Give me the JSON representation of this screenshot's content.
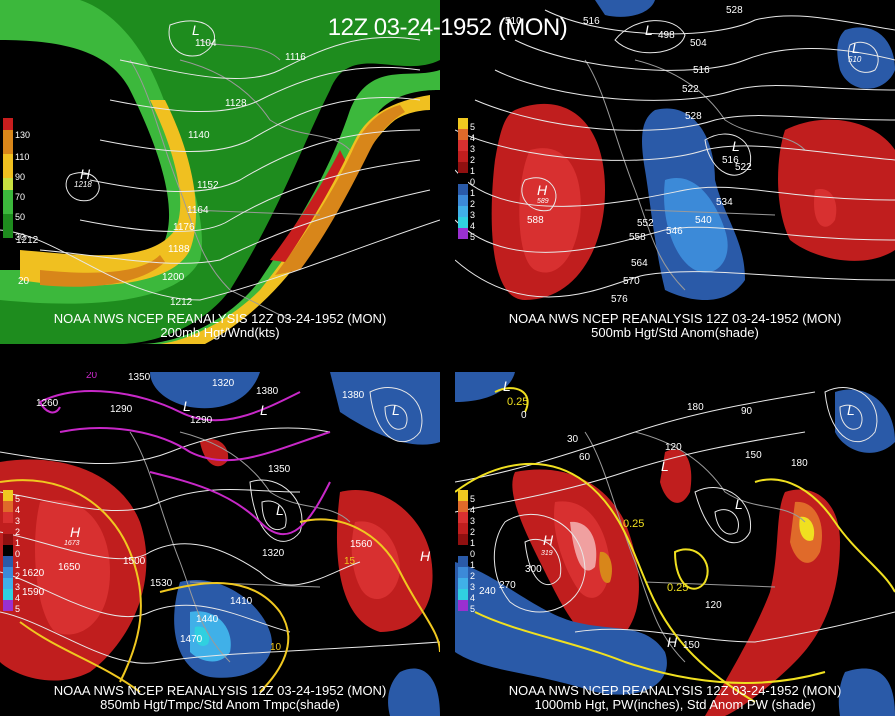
{
  "title": "12Z 03-24-1952 (MON)",
  "panels": [
    {
      "caption_line1": "NOAA NWS NCEP REANALYSIS 12Z 03-24-1952 (MON)",
      "caption_line2": "200mb Hgt/Wnd(kts)",
      "legend": [
        {
          "label": "130",
          "color": "#c81e1e"
        },
        {
          "label": "110",
          "color": "#d8861a"
        },
        {
          "label": "90",
          "color": "#f0c020"
        },
        {
          "label": "70",
          "color": "#c8e040"
        },
        {
          "label": "50",
          "color": "#3cb83c"
        },
        {
          "label": "30",
          "color": "#1e8c1e"
        }
      ],
      "contour_labels": [
        "1104",
        "1116",
        "1128",
        "1140",
        "1152",
        "1164",
        "1176",
        "1188",
        "1200",
        "1212",
        "1212",
        "1218",
        "20"
      ],
      "centers": [
        "H",
        "L"
      ]
    },
    {
      "caption_line1": "NOAA NWS NCEP REANALYSIS 12Z 03-24-1952 (MON)",
      "caption_line2": "500mb Hgt/Std Anom(shade)",
      "legend": [
        {
          "label": "5",
          "color": "#f0c820"
        },
        {
          "label": "4",
          "color": "#e06a2a"
        },
        {
          "label": "3",
          "color": "#d83030"
        },
        {
          "label": "2",
          "color": "#c01e1e"
        },
        {
          "label": "1",
          "color": "#901010"
        },
        {
          "label": "0",
          "color": "#000000"
        },
        {
          "label": "1",
          "color": "#2a5aa8"
        },
        {
          "label": "2",
          "color": "#3c8ad8"
        },
        {
          "label": "3",
          "color": "#40b0e8"
        },
        {
          "label": "4",
          "color": "#30d0e0"
        },
        {
          "label": "5",
          "color": "#9a30d0"
        }
      ],
      "contour_labels": [
        "498",
        "504",
        "510",
        "516",
        "516",
        "522",
        "528",
        "528",
        "534",
        "540",
        "546",
        "552",
        "558",
        "564",
        "570",
        "576",
        "588",
        "589",
        "510",
        "516",
        "522"
      ],
      "centers": [
        "H",
        "L",
        "L",
        "L"
      ]
    },
    {
      "caption_line1": "NOAA NWS NCEP REANALYSIS 12Z 03-24-1952 (MON)",
      "caption_line2": "850mb Hgt/Tmpc/Std Anom Tmpc(shade)",
      "legend": [
        {
          "label": "5",
          "color": "#f0c820"
        },
        {
          "label": "4",
          "color": "#e06a2a"
        },
        {
          "label": "3",
          "color": "#d83030"
        },
        {
          "label": "2",
          "color": "#c01e1e"
        },
        {
          "label": "1",
          "color": "#901010"
        },
        {
          "label": "0",
          "color": "#000000"
        },
        {
          "label": "1",
          "color": "#2a5aa8"
        },
        {
          "label": "2",
          "color": "#3c8ad8"
        },
        {
          "label": "3",
          "color": "#40b0e8"
        },
        {
          "label": "4",
          "color": "#30d0e0"
        },
        {
          "label": "5",
          "color": "#9a30d0"
        }
      ],
      "contour_labels": [
        "1260",
        "1290",
        "1320",
        "1350",
        "1380",
        "1410",
        "1440",
        "1470",
        "1500",
        "1530",
        "1560",
        "1590",
        "1620",
        "1650",
        "1673",
        "1290",
        "1320",
        "1350",
        "1380",
        "20",
        "10",
        "15"
      ],
      "centers": [
        "H",
        "H",
        "L",
        "L",
        "L",
        "L"
      ]
    },
    {
      "caption_line1": "NOAA NWS NCEP REANALYSIS 12Z 03-24-1952 (MON)",
      "caption_line2": "1000mb Hgt, PW(inches), Std Anom PW (shade)",
      "legend": [
        {
          "label": "5",
          "color": "#f0c820"
        },
        {
          "label": "4",
          "color": "#e06a2a"
        },
        {
          "label": "3",
          "color": "#d83030"
        },
        {
          "label": "2",
          "color": "#c01e1e"
        },
        {
          "label": "1",
          "color": "#901010"
        },
        {
          "label": "0",
          "color": "#000000"
        },
        {
          "label": "1",
          "color": "#2a5aa8"
        },
        {
          "label": "2",
          "color": "#3c8ad8"
        },
        {
          "label": "3",
          "color": "#40b0e8"
        },
        {
          "label": "4",
          "color": "#30d0e0"
        },
        {
          "label": "5",
          "color": "#9a30d0"
        }
      ],
      "contour_labels": [
        "0",
        "30",
        "60",
        "90",
        "120",
        "150",
        "180",
        "240",
        "270",
        "300",
        "0.25",
        "0.25",
        "0.25",
        "120",
        "150",
        "180",
        "319"
      ],
      "centers": [
        "H",
        "H",
        "L",
        "L",
        "L",
        "L"
      ]
    }
  ]
}
